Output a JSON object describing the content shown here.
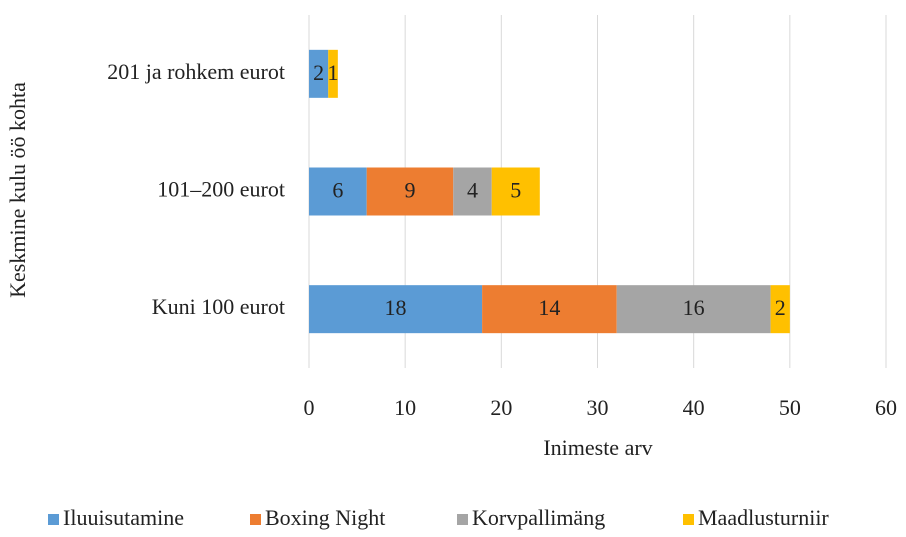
{
  "chart_data": {
    "type": "stacked_barh",
    "xlabel": "Inimeste arv",
    "ylabel": "Keskmine kulu öö kohta",
    "categories": [
      "201 ja rohkem eurot",
      "101–200 eurot",
      "Kuni 100 eurot"
    ],
    "series": [
      {
        "name": "Iluuisutamine",
        "color": "#5b9bd5",
        "values": [
          2,
          6,
          18
        ]
      },
      {
        "name": "Boxing Night",
        "color": "#ed7d31",
        "values": [
          null,
          9,
          14
        ]
      },
      {
        "name": "Korvpallimäng",
        "color": "#a5a5a5",
        "values": [
          null,
          4,
          16
        ]
      },
      {
        "name": "Maadlusturniir",
        "color": "#ffc000",
        "values": [
          1,
          5,
          2
        ]
      }
    ],
    "xlim": [
      0,
      60
    ],
    "xticks": [
      0,
      10,
      20,
      30,
      40,
      50,
      60
    ],
    "grid": true,
    "legend": "bottom"
  }
}
